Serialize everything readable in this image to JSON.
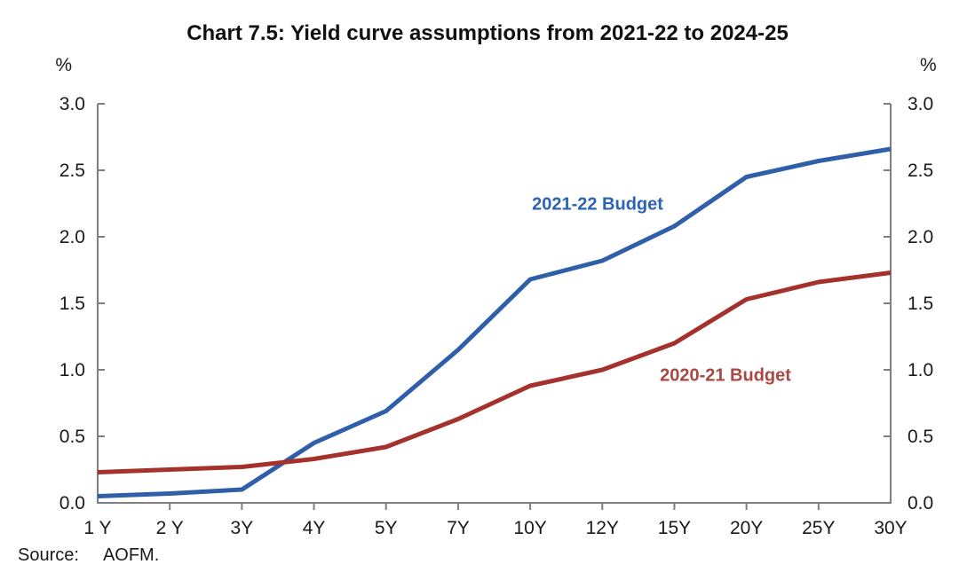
{
  "header": {
    "title": "Chart 7.5: Yield curve assumptions from 2021-22 to 2024-25"
  },
  "source": {
    "label": "Source:",
    "value": "AOFM."
  },
  "chart_data": {
    "type": "line",
    "title": "Chart 7.5: Yield curve assumptions from 2021-22 to 2024-25",
    "unit_label_left": "%",
    "unit_label_right": "%",
    "categories": [
      "1 Y",
      "2 Y",
      "3Y",
      "4Y",
      "5Y",
      "7Y",
      "10Y",
      "12Y",
      "15Y",
      "20Y",
      "25Y",
      "30Y"
    ],
    "y_ticks": [
      "0.0",
      "0.5",
      "1.0",
      "1.5",
      "2.0",
      "2.5",
      "3.0"
    ],
    "ylim": [
      0.0,
      3.0
    ],
    "grid": false,
    "legend": "inline-labels",
    "axis_color": "#7f7f7f",
    "tick_label_color": "#1a1a1a",
    "series": [
      {
        "name": "2021-22 Budget",
        "color": "#2E5FA8",
        "label_color": "#2C64B1",
        "values": [
          0.05,
          0.07,
          0.1,
          0.45,
          0.69,
          1.15,
          1.68,
          1.82,
          2.08,
          2.45,
          2.57,
          2.66
        ]
      },
      {
        "name": "2020-21 Budget",
        "color": "#A5312C",
        "label_color": "#A94744",
        "values": [
          0.23,
          0.25,
          0.27,
          0.33,
          0.42,
          0.63,
          0.88,
          1.0,
          1.2,
          1.53,
          1.66,
          1.73
        ]
      }
    ]
  }
}
